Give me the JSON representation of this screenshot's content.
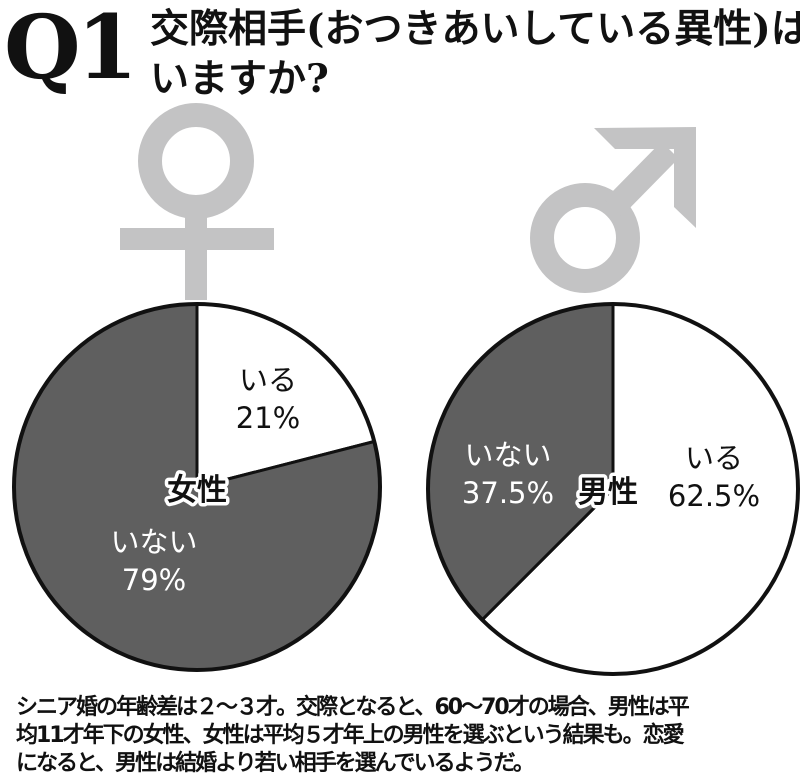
{
  "header": {
    "number": "Q1",
    "title_lines": [
      "交際相手(おつきあいしている異性)は",
      "いますか?"
    ]
  },
  "colors": {
    "slice_dark": "#5f5f5f",
    "slice_light": "#ffffff",
    "outline": "#111111",
    "symbol_gray": "#c3c3c4",
    "label_on_dark": "#ffffff",
    "label_on_light": "#111111",
    "center_halo": "#ffffff"
  },
  "chart_data": [
    {
      "type": "pie",
      "title": "女性",
      "symbol": "female-symbol",
      "slices": [
        {
          "label": "いる",
          "value": 21,
          "value_text": "21%",
          "fill": "light"
        },
        {
          "label": "いない",
          "value": 79,
          "value_text": "79%",
          "fill": "dark"
        }
      ]
    },
    {
      "type": "pie",
      "title": "男性",
      "symbol": "male-symbol",
      "slices": [
        {
          "label": "いる",
          "value": 62.5,
          "value_text": "62.5%",
          "fill": "light"
        },
        {
          "label": "いない",
          "value": 37.5,
          "value_text": "37.5%",
          "fill": "dark"
        }
      ]
    }
  ],
  "caption_lines": [
    "シニア婚の年齢差は２～３才。交際となると、60～70才の場合、男性は平",
    "均11才年下の女性、女性は平均５才年上の男性を選ぶという結果も。恋愛",
    "になると、男性は結婚より若い相手を選んでいるようだ。"
  ]
}
